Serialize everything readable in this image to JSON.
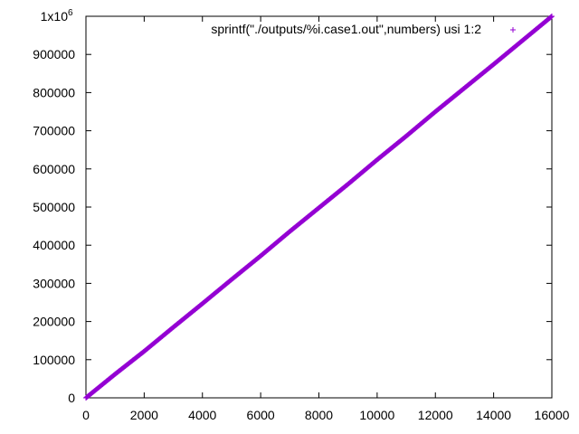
{
  "chart_data": {
    "type": "scatter",
    "title": "",
    "xlabel": "",
    "ylabel": "",
    "xlim": [
      0,
      16000
    ],
    "ylim": [
      0,
      1000000
    ],
    "x_ticks": [
      0,
      2000,
      4000,
      6000,
      8000,
      10000,
      12000,
      14000,
      16000
    ],
    "x_tick_labels": [
      "0",
      "2000",
      "4000",
      "6000",
      "8000",
      "10000",
      "12000",
      "14000",
      "16000"
    ],
    "y_ticks": [
      0,
      100000,
      200000,
      300000,
      400000,
      500000,
      600000,
      700000,
      800000,
      900000,
      1000000
    ],
    "y_tick_labels": [
      "0",
      "100000",
      "200000",
      "300000",
      "400000",
      "500000",
      "600000",
      "700000",
      "800000",
      "900000",
      "1x10"
    ],
    "y_top_exponent": "6",
    "grid": false,
    "legend_position": "top-right",
    "series": [
      {
        "name": "sprintf(\"./outputs/%i.case1.out\",numbers) usi 1:2",
        "color": "#9400d3",
        "marker": "plus",
        "x": [
          0,
          1000,
          2000,
          3000,
          4000,
          5000,
          6000,
          7000,
          8000,
          9000,
          10000,
          11000,
          12000,
          13000,
          14000,
          15000,
          16000
        ],
        "y": [
          0,
          62000,
          122000,
          185000,
          247000,
          310000,
          372000,
          436000,
          498000,
          560000,
          624000,
          686000,
          750000,
          812000,
          874000,
          937000,
          1000000
        ]
      }
    ]
  }
}
